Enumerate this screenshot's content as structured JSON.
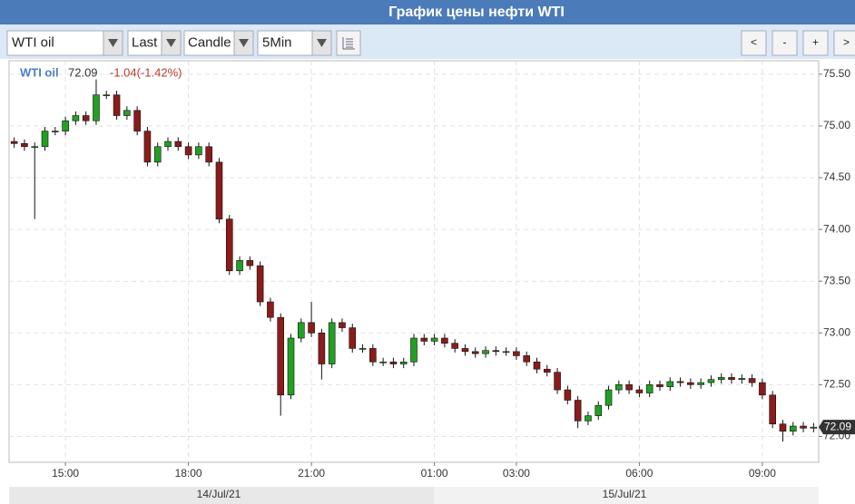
{
  "title": "График цены нефти WTI",
  "toolbar": {
    "symbol": "WTI oil",
    "field": "Last",
    "style": "Candle",
    "interval": "5Min",
    "buttons": [
      "<",
      "-",
      "+",
      ">"
    ]
  },
  "chart_data": {
    "type": "candlestick",
    "info": {
      "name": "WTI oil",
      "last": "72.09",
      "change": "-1.04(-1.42%)"
    },
    "categories": [
      null,
      null,
      null,
      null,
      null,
      "15:00",
      null,
      null,
      null,
      null,
      null,
      null,
      null,
      null,
      null,
      null,
      null,
      "18:00",
      null,
      null,
      null,
      null,
      null,
      null,
      null,
      null,
      null,
      null,
      null,
      "21:00",
      null,
      null,
      null,
      null,
      null,
      null,
      null,
      null,
      null,
      null,
      null,
      "01:00",
      null,
      null,
      null,
      null,
      null,
      null,
      null,
      "03:00",
      null,
      null,
      null,
      null,
      null,
      null,
      null,
      null,
      null,
      null,
      null,
      "06:00",
      null,
      null,
      null,
      null,
      null,
      null,
      null,
      null,
      null,
      null,
      null,
      "09:00",
      null,
      null,
      null,
      null,
      null
    ],
    "dates": [
      "14/Jul/21",
      "15/Jul/21"
    ],
    "open": [
      74.85,
      74.83,
      74.8,
      74.8,
      74.95,
      74.95,
      75.05,
      75.1,
      75.05,
      75.3,
      75.3,
      75.1,
      75.15,
      74.95,
      74.65,
      74.8,
      74.85,
      74.8,
      74.72,
      74.8,
      74.65,
      74.1,
      73.6,
      73.7,
      73.65,
      73.3,
      73.15,
      72.4,
      72.95,
      73.1,
      73.0,
      72.7,
      73.1,
      73.05,
      72.85,
      72.85,
      72.72,
      72.72,
      72.7,
      72.72,
      72.95,
      72.92,
      72.95,
      72.9,
      72.85,
      72.82,
      72.8,
      72.83,
      72.82,
      72.82,
      72.78,
      72.72,
      72.65,
      72.62,
      72.45,
      72.35,
      72.15,
      72.2,
      72.3,
      72.45,
      72.5,
      72.45,
      72.42,
      72.5,
      72.48,
      72.53,
      72.52,
      72.5,
      72.52,
      72.55,
      72.57,
      72.55,
      72.56,
      72.52,
      72.4,
      72.12,
      72.05,
      72.1,
      72.08
    ],
    "high": [
      74.89,
      74.87,
      74.84,
      74.99,
      74.99,
      75.09,
      75.14,
      75.14,
      75.45,
      75.34,
      75.34,
      75.19,
      75.19,
      74.99,
      74.84,
      74.89,
      74.89,
      74.84,
      74.84,
      74.84,
      74.69,
      74.14,
      73.74,
      73.74,
      73.69,
      73.34,
      73.19,
      72.99,
      73.14,
      73.3,
      73.04,
      73.14,
      73.14,
      73.09,
      72.89,
      72.89,
      72.76,
      72.76,
      72.76,
      72.99,
      72.99,
      72.99,
      72.99,
      72.94,
      72.89,
      72.86,
      72.87,
      72.87,
      72.86,
      72.86,
      72.82,
      72.76,
      72.69,
      72.66,
      72.49,
      72.39,
      72.24,
      72.34,
      72.49,
      72.54,
      72.54,
      72.49,
      72.54,
      72.54,
      72.57,
      72.57,
      72.56,
      72.56,
      72.59,
      72.61,
      72.61,
      72.6,
      72.6,
      72.56,
      72.44,
      72.16,
      72.14,
      72.14,
      72.13
    ],
    "low": [
      74.79,
      74.76,
      74.1,
      74.76,
      74.91,
      74.91,
      75.01,
      75.01,
      75.01,
      75.26,
      75.06,
      75.06,
      74.91,
      74.61,
      74.61,
      74.76,
      74.76,
      74.68,
      74.68,
      74.61,
      74.06,
      73.56,
      73.56,
      73.61,
      73.26,
      73.11,
      72.2,
      72.36,
      72.91,
      72.96,
      72.55,
      72.66,
      73.01,
      72.81,
      72.81,
      72.68,
      72.68,
      72.66,
      72.66,
      72.68,
      72.88,
      72.88,
      72.86,
      72.81,
      72.78,
      72.76,
      72.76,
      72.78,
      72.78,
      72.74,
      72.68,
      72.61,
      72.58,
      72.41,
      72.31,
      72.08,
      72.11,
      72.16,
      72.26,
      72.41,
      72.41,
      72.38,
      72.38,
      72.44,
      72.44,
      72.48,
      72.46,
      72.46,
      72.48,
      72.51,
      72.51,
      72.51,
      72.48,
      72.36,
      72.08,
      71.95,
      72.01,
      72.04,
      72.04
    ],
    "close": [
      74.83,
      74.8,
      74.8,
      74.95,
      74.95,
      75.05,
      75.1,
      75.05,
      75.3,
      75.3,
      75.1,
      75.15,
      74.95,
      74.65,
      74.8,
      74.85,
      74.8,
      74.72,
      74.8,
      74.65,
      74.1,
      73.6,
      73.7,
      73.65,
      73.3,
      73.15,
      72.4,
      72.95,
      73.1,
      73.0,
      72.7,
      73.1,
      73.05,
      72.85,
      72.85,
      72.72,
      72.72,
      72.7,
      72.72,
      72.95,
      72.92,
      72.95,
      72.9,
      72.85,
      72.82,
      72.8,
      72.83,
      72.82,
      72.82,
      72.78,
      72.72,
      72.65,
      72.62,
      72.45,
      72.35,
      72.15,
      72.2,
      72.3,
      72.45,
      72.5,
      72.45,
      72.42,
      72.5,
      72.48,
      72.53,
      72.52,
      72.5,
      72.52,
      72.55,
      72.57,
      72.55,
      72.56,
      72.52,
      72.4,
      72.12,
      72.05,
      72.1,
      72.08,
      72.09
    ],
    "up_color": "#22a022",
    "down_color": "#8a1c1c",
    "ylim": [
      71.75,
      75.63
    ],
    "yticks": [
      {
        "value": 72,
        "label": "72.00"
      },
      {
        "value": 72.5,
        "label": "72.50"
      },
      {
        "value": 73,
        "label": "73.00"
      },
      {
        "value": 73.5,
        "label": "73.50"
      },
      {
        "value": 74,
        "label": "74.00"
      },
      {
        "value": 74.5,
        "label": "74.50"
      },
      {
        "value": 75,
        "label": "75.00"
      },
      {
        "value": 75.5,
        "label": "75.50"
      }
    ],
    "grid": true
  }
}
